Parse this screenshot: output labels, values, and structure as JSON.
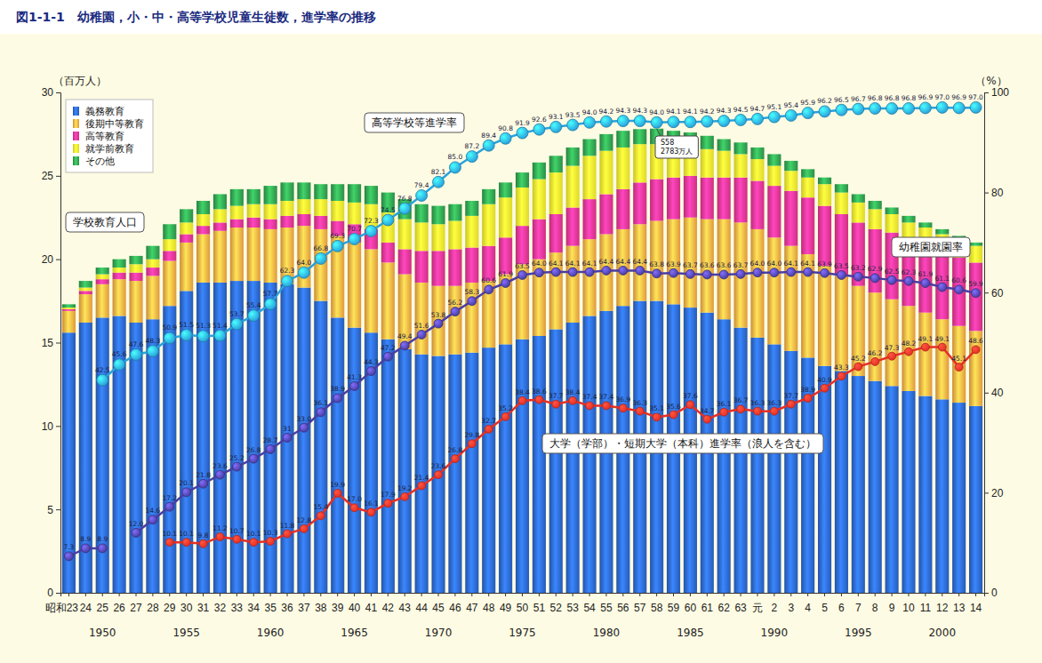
{
  "chart_data": {
    "type": "bar",
    "title": "図1-1-1　幼稚園，小・中・高等学校児童生徒数，進学率の推移",
    "ylabel": "（百万人）",
    "y2label": "（%）",
    "categories": [
      "昭和23",
      "24",
      "25",
      "26",
      "27",
      "28",
      "29",
      "30",
      "31",
      "32",
      "33",
      "34",
      "35",
      "36",
      "37",
      "38",
      "39",
      "40",
      "41",
      "42",
      "43",
      "44",
      "45",
      "46",
      "47",
      "48",
      "49",
      "50",
      "51",
      "52",
      "53",
      "54",
      "55",
      "56",
      "57",
      "58",
      "59",
      "60",
      "61",
      "62",
      "63",
      "元",
      "2",
      "3",
      "4",
      "5",
      "6",
      "7",
      "8",
      "9",
      "10",
      "11",
      "12",
      "13",
      "14"
    ],
    "year_labels": [
      null,
      null,
      "1950",
      null,
      null,
      null,
      null,
      "1955",
      null,
      null,
      null,
      null,
      "1960",
      null,
      null,
      null,
      null,
      "1965",
      null,
      null,
      null,
      null,
      "1970",
      null,
      null,
      null,
      null,
      "1975",
      null,
      null,
      null,
      null,
      "1980",
      null,
      null,
      null,
      null,
      "1985",
      null,
      null,
      null,
      null,
      "1990",
      null,
      null,
      null,
      null,
      "1995",
      null,
      null,
      null,
      null,
      "2000",
      null,
      null
    ],
    "ylim": [
      0,
      30
    ],
    "yticks": [
      0,
      5,
      10,
      15,
      20,
      25,
      30
    ],
    "y2lim": [
      0,
      100
    ],
    "y2ticks": [
      0,
      20,
      40,
      60,
      80,
      100
    ],
    "stacked": true,
    "data_labels": true,
    "legend": "upper left",
    "grid": false,
    "series": [
      {
        "name": "義務教育",
        "type": "bar",
        "color": "#2a62c8",
        "values": [
          15.6,
          16.2,
          16.5,
          16.6,
          16.2,
          16.4,
          17.2,
          18.1,
          18.6,
          18.6,
          18.7,
          18.7,
          18.6,
          18.5,
          18.3,
          17.5,
          16.5,
          15.9,
          15.6,
          15.2,
          14.6,
          14.3,
          14.2,
          14.3,
          14.4,
          14.7,
          14.9,
          15.2,
          15.4,
          15.8,
          16.2,
          16.6,
          16.9,
          17.2,
          17.5,
          17.5,
          17.3,
          17.1,
          16.8,
          16.4,
          15.9,
          15.3,
          14.9,
          14.5,
          14.1,
          13.6,
          13.3,
          13.0,
          12.7,
          12.4,
          12.1,
          11.8,
          11.6,
          11.4,
          11.2
        ]
      },
      {
        "name": "後期中等教育",
        "type": "bar",
        "color": "#f4a640",
        "values": [
          1.3,
          1.7,
          2.0,
          2.2,
          2.5,
          2.6,
          2.7,
          2.9,
          2.9,
          3.1,
          3.2,
          3.2,
          3.2,
          3.4,
          3.7,
          4.3,
          4.9,
          5.1,
          5.0,
          4.6,
          4.5,
          4.3,
          4.2,
          4.1,
          4.2,
          4.0,
          4.2,
          4.5,
          4.6,
          4.6,
          4.6,
          4.6,
          4.6,
          4.6,
          4.6,
          4.8,
          5.1,
          5.4,
          5.6,
          6.0,
          6.3,
          6.5,
          6.4,
          6.3,
          6.2,
          6.0,
          5.7,
          5.4,
          5.3,
          5.2,
          5.1,
          5.0,
          4.8,
          4.6,
          4.5
        ]
      },
      {
        "name": "高等教育",
        "type": "bar",
        "color": "#e2338c",
        "values": [
          0.1,
          0.2,
          0.3,
          0.4,
          0.5,
          0.5,
          0.6,
          0.5,
          0.5,
          0.5,
          0.5,
          0.6,
          0.6,
          0.7,
          0.7,
          0.8,
          0.9,
          1.1,
          1.2,
          1.2,
          1.5,
          1.9,
          2.1,
          2.2,
          2.1,
          2.1,
          2.2,
          2.3,
          2.4,
          2.3,
          2.3,
          2.4,
          2.4,
          2.4,
          2.5,
          2.5,
          2.5,
          2.5,
          2.5,
          2.5,
          2.7,
          2.9,
          3.1,
          3.3,
          3.4,
          3.6,
          3.7,
          3.8,
          3.8,
          4.0,
          3.9,
          4.0,
          4.1,
          4.1,
          4.1
        ]
      },
      {
        "name": "就学前教育",
        "type": "bar",
        "color": "#f2ec2e",
        "values": [
          0.1,
          0.2,
          0.3,
          0.3,
          0.5,
          0.5,
          0.7,
          0.7,
          0.7,
          0.8,
          0.8,
          0.8,
          0.9,
          0.9,
          0.9,
          1.0,
          1.2,
          1.3,
          1.5,
          1.8,
          1.8,
          1.7,
          1.6,
          1.7,
          1.9,
          2.5,
          2.4,
          2.3,
          2.4,
          2.5,
          2.5,
          2.6,
          2.6,
          2.5,
          2.3,
          2.1,
          1.9,
          1.8,
          1.7,
          1.6,
          1.4,
          1.3,
          1.2,
          1.2,
          1.2,
          1.3,
          1.3,
          1.2,
          1.2,
          1.1,
          1.1,
          1.1,
          1.0,
          1.0,
          1.0
        ]
      },
      {
        "name": "その他",
        "type": "bar",
        "color": "#2f9a4c",
        "values": [
          0.2,
          0.4,
          0.4,
          0.5,
          0.5,
          0.8,
          0.9,
          0.8,
          0.8,
          0.9,
          1.0,
          0.9,
          1.1,
          1.1,
          1.0,
          0.9,
          1.0,
          1.1,
          1.1,
          1.2,
          1.2,
          1.1,
          1.1,
          1.0,
          0.9,
          0.9,
          0.9,
          0.9,
          1.0,
          1.0,
          1.1,
          1.0,
          1.0,
          1.0,
          0.9,
          0.93,
          0.9,
          0.8,
          0.8,
          0.7,
          0.7,
          0.7,
          0.7,
          0.6,
          0.5,
          0.4,
          0.5,
          0.5,
          0.5,
          0.4,
          0.4,
          0.3,
          0.3,
          0.3,
          0.2
        ]
      },
      {
        "name": "高等学校等進学率",
        "type": "line",
        "axis": "y2",
        "color": "#29a3dc",
        "marker": "circle",
        "line_style": "solid",
        "values": [
          null,
          null,
          42.5,
          45.6,
          47.6,
          48.3,
          50.9,
          51.5,
          51.3,
          51.4,
          53.7,
          55.4,
          57.7,
          62.3,
          64.0,
          66.8,
          69.3,
          70.7,
          72.3,
          74.5,
          76.8,
          79.4,
          82.1,
          85.0,
          87.2,
          89.4,
          90.8,
          91.9,
          92.6,
          93.1,
          93.5,
          94.0,
          94.2,
          94.3,
          94.3,
          94.0,
          94.1,
          94.1,
          94.2,
          94.3,
          94.5,
          94.7,
          95.1,
          95.4,
          95.9,
          96.2,
          96.5,
          96.7,
          96.8,
          96.8,
          96.8,
          96.9,
          97.0,
          96.9,
          97.0
        ],
        "value_labels": [
          null,
          null,
          "42.5",
          "45.6",
          "47.6",
          "48.3",
          "50.9",
          "51.5",
          "51.3",
          "51.4",
          "53.7",
          "55.4",
          "57.7",
          "62.3",
          "64.0",
          "66.8",
          "69.3",
          "70.7",
          "72.3",
          "74.5",
          "76.8",
          "79.4",
          "82.1",
          "85.0",
          "87.2",
          "89.4",
          "90.8",
          "91.9",
          "92.6",
          "93.1",
          "93.5",
          "94.0",
          "94.2",
          "94.3",
          "94.3",
          "94.0",
          "94.1",
          "94.1",
          "94.2",
          "94.3",
          "94.5",
          "94.7",
          "95.1",
          "95.4",
          "95.9",
          "96.2",
          "96.5",
          "96.7",
          "96.8",
          "96.8",
          "96.8",
          "96.9",
          "97.0",
          "96.9",
          "97.0"
        ]
      },
      {
        "name": "幼稚園就園率",
        "type": "line",
        "axis": "y2",
        "color": "#4a3ea4",
        "marker": "circle",
        "line_style": "solid",
        "values": [
          7.3,
          8.9,
          8.9,
          null,
          12.0,
          14.6,
          17.2,
          20.1,
          21.8,
          23.6,
          25.2,
          26.8,
          28.7,
          31,
          33.0,
          36.1,
          38.9,
          41.3,
          44.3,
          47.2,
          49.4,
          51.6,
          53.8,
          56.2,
          58.3,
          60.6,
          61.9,
          63.5,
          64.0,
          64.1,
          64.1,
          64.1,
          64.4,
          64.4,
          64.4,
          63.8,
          63.9,
          63.7,
          63.6,
          63.6,
          63.7,
          64.0,
          64.0,
          64.1,
          64.1,
          63.9,
          63.5,
          63.2,
          62.9,
          62.5,
          62.3,
          61.9,
          61.1,
          60.6,
          59.9
        ],
        "value_labels": [
          "7.3",
          "8.9",
          "8.9",
          null,
          "12.0",
          "14.6",
          "17.2",
          "20.1",
          "21.8",
          "23.6",
          "25.2",
          "26.8",
          "28.7",
          "31",
          "33.0",
          "36.1",
          "38.9",
          "41.3",
          "44.3",
          "47.2",
          "49.4",
          "51.6",
          "53.8",
          "56.2",
          "58.3",
          "60.6",
          "61.9",
          "63.5",
          "64.0",
          "64.1",
          "64.1",
          "64.1",
          "64.4",
          "64.4",
          "64.4",
          "63.8",
          "63.9",
          "63.7",
          "63.6",
          "63.6",
          "63.7",
          "64.0",
          "64.0",
          "64.1",
          "64.1",
          "63.9",
          "63.5",
          "63.2",
          "62.9",
          "62.5",
          "62.3",
          "61.9",
          "61.1",
          "60.6",
          "59.9"
        ]
      },
      {
        "name": "大学（学部）・短期大学（本科）進学率（浪人を含む）",
        "type": "line",
        "axis": "y2",
        "color": "#e63025",
        "marker": "circle",
        "line_style": "solid",
        "values": [
          null,
          null,
          null,
          null,
          null,
          null,
          10.1,
          10.1,
          9.8,
          11.2,
          10.7,
          10.1,
          10.3,
          11.8,
          12.8,
          15.4,
          19.9,
          17.0,
          16.1,
          17.9,
          19.2,
          21.4,
          23.6,
          26.8,
          29.8,
          32.7,
          35.2,
          38.4,
          38.6,
          37.7,
          38.4,
          37.4,
          37.4,
          36.9,
          36.3,
          35.1,
          35.6,
          37.6,
          34.7,
          36.1,
          36.7,
          36.3,
          36.3,
          37.7,
          38.9,
          40.9,
          43.3,
          45.2,
          46.2,
          47.3,
          48.2,
          49.1,
          49.1,
          45.1,
          48.6
        ],
        "value_labels": [
          null,
          null,
          null,
          null,
          null,
          null,
          "10.1",
          "10.1",
          "9.8",
          "11.2",
          "10.7",
          "10.1",
          "10.3",
          "11.8",
          "12.8",
          "15.4",
          "19.9",
          "17.0",
          "16.1",
          "17.9",
          "19.2",
          "21.4",
          "23.6",
          "26.8",
          "29.8",
          "32.7",
          "35.2",
          "38.4",
          "38.6",
          "37.7",
          "38.4",
          "37.4",
          "37.4",
          "36.9",
          "36.3",
          "35.1",
          "35.6",
          "37.6",
          "34.7",
          "36.1",
          "36.7",
          "36.3",
          "36.3",
          "37.7",
          "38.9",
          "40.9",
          "43.3",
          "45.2",
          "46.2",
          "47.3",
          "48.2",
          "49.1",
          "49.1",
          "45.1",
          "48.6"
        ]
      }
    ],
    "annotations": [
      {
        "text": "学校教育人口"
      }
    ],
    "callout": {
      "lines": [
        "S58",
        "2783万人"
      ]
    }
  }
}
